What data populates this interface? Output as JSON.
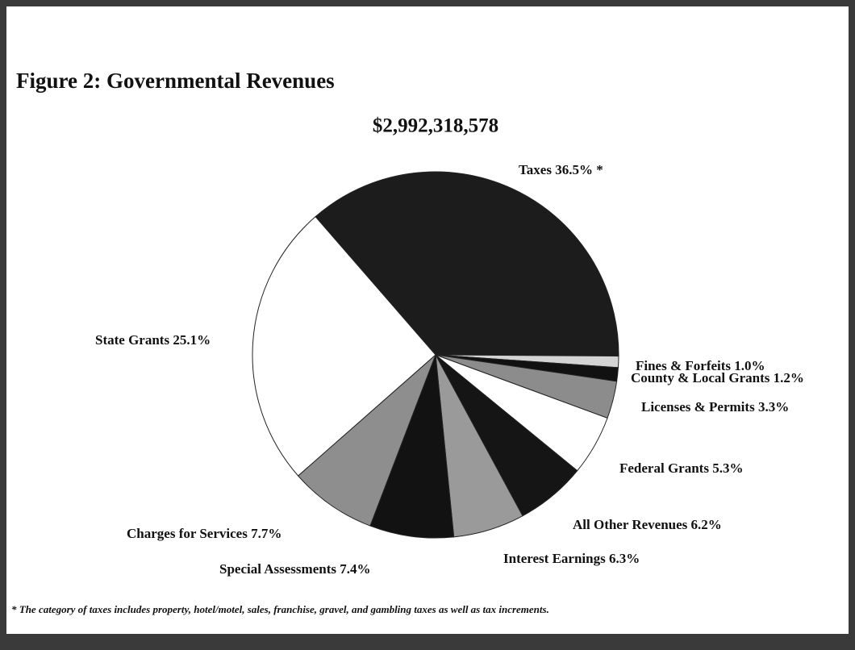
{
  "chart_data": {
    "type": "pie",
    "title": "Figure 2:  Governmental Revenues",
    "subtitle": "$2,992,318,578",
    "categories": [
      "Taxes",
      "Fines & Forfeits",
      "County & Local Grants",
      "Licenses & Permits",
      "Federal Grants",
      "All Other Revenues",
      "Interest Earnings",
      "Special Assessments",
      "Charges for Services",
      "State Grants"
    ],
    "values": [
      36.5,
      1.0,
      1.2,
      3.3,
      5.3,
      6.2,
      6.3,
      7.4,
      7.7,
      25.1
    ],
    "value_labels": [
      "36.5% *",
      "1.0%",
      "1.2%",
      "3.3%",
      "5.3%",
      "6.2%",
      "6.3%",
      "7.4%",
      "7.7%",
      "25.1%"
    ],
    "colors": [
      "#1c1c1c",
      "#d4d4d4",
      "#111111",
      "#8c8c8c",
      "#ffffff",
      "#151515",
      "#9a9a9a",
      "#121212",
      "#8e8e8e",
      "#ffffff"
    ],
    "footnote": "* The category of taxes includes property, hotel/motel, sales, franchise, gravel, and gambling taxes as well as tax increments."
  }
}
